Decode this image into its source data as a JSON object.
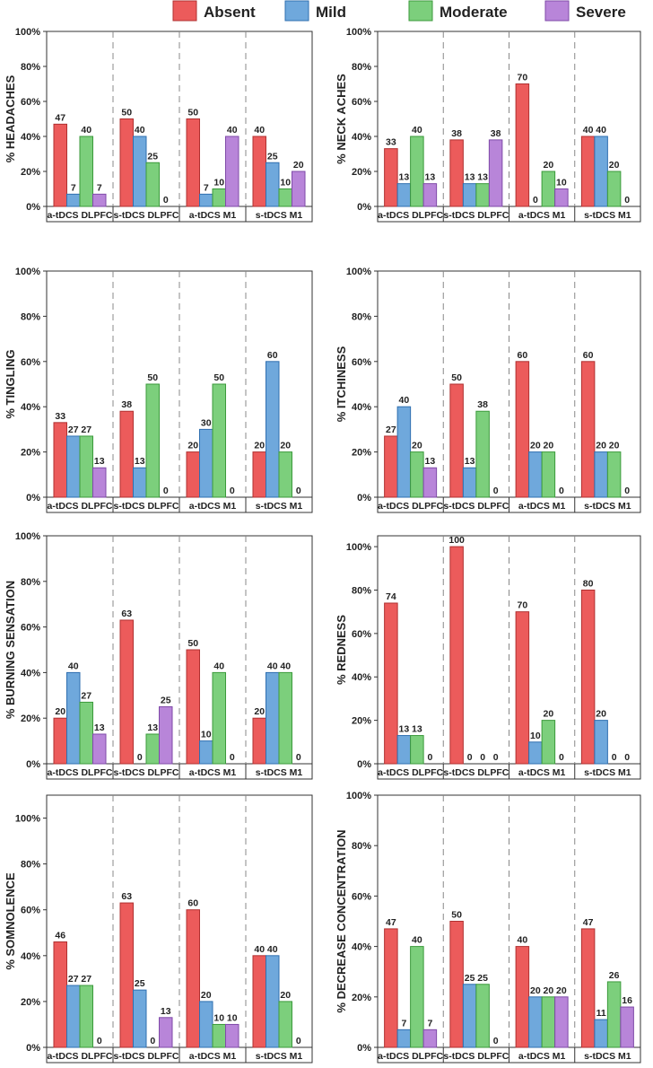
{
  "legend": {
    "entries": [
      "Absent",
      "Mild",
      "Moderate",
      "Severe"
    ]
  },
  "colors": {
    "Absent": "#ec5b5b",
    "Mild": "#6fa8dc",
    "Moderate": "#7ccf7c",
    "Severe": "#b885d9",
    "outline_Absent": "#b03030",
    "outline_Mild": "#2f6fb0",
    "outline_Moderate": "#3b9a3b",
    "outline_Severe": "#7f4aa8"
  },
  "chart_data": [
    {
      "type": "bar",
      "ylabel": "% HEADACHES",
      "ylim": [
        0,
        100
      ],
      "yticks": [
        "0%",
        "20%",
        "40%",
        "60%",
        "80%",
        "100%"
      ],
      "categories": [
        "a-tDCS DLPFC",
        "s-tDCS DLPFC",
        "a-tDCS M1",
        "s-tDCS M1"
      ],
      "series": [
        {
          "name": "Absent",
          "values": [
            47,
            50,
            50,
            40
          ]
        },
        {
          "name": "Mild",
          "values": [
            7,
            40,
            7,
            25
          ]
        },
        {
          "name": "Moderate",
          "values": [
            40,
            25,
            10,
            10
          ]
        },
        {
          "name": "Severe",
          "values": [
            7,
            0,
            40,
            20
          ]
        }
      ]
    },
    {
      "type": "bar",
      "ylabel": "% NECK ACHES",
      "ylim": [
        0,
        100
      ],
      "yticks": [
        "0%",
        "20%",
        "40%",
        "60%",
        "80%",
        "100%"
      ],
      "categories": [
        "a-tDCS DLPFC",
        "s-tDCS DLPFC",
        "a-tDCS M1",
        "s-tDCS M1"
      ],
      "series": [
        {
          "name": "Absent",
          "values": [
            33,
            38,
            70,
            40
          ]
        },
        {
          "name": "Mild",
          "values": [
            13,
            13,
            0,
            40
          ]
        },
        {
          "name": "Moderate",
          "values": [
            40,
            13,
            20,
            20
          ]
        },
        {
          "name": "Severe",
          "values": [
            13,
            38,
            10,
            0
          ]
        }
      ]
    },
    {
      "type": "bar",
      "ylabel": "% TINGLING",
      "ylim": [
        0,
        100
      ],
      "yticks": [
        "0%",
        "20%",
        "40%",
        "60%",
        "80%",
        "100%"
      ],
      "categories": [
        "a-tDCS DLPFC",
        "s-tDCS DLPFC",
        "a-tDCS M1",
        "s-tDCS M1"
      ],
      "series": [
        {
          "name": "Absent",
          "values": [
            33,
            38,
            20,
            20
          ]
        },
        {
          "name": "Mild",
          "values": [
            27,
            13,
            30,
            60
          ]
        },
        {
          "name": "Moderate",
          "values": [
            27,
            50,
            50,
            20
          ]
        },
        {
          "name": "Severe",
          "values": [
            13,
            0,
            0,
            0
          ]
        }
      ]
    },
    {
      "type": "bar",
      "ylabel": "% ITCHINESS",
      "ylim": [
        0,
        100
      ],
      "yticks": [
        "0%",
        "20%",
        "40%",
        "60%",
        "80%",
        "100%"
      ],
      "categories": [
        "a-tDCS DLPFC",
        "s-tDCS DLPFC",
        "a-tDCS M1",
        "s-tDCS M1"
      ],
      "series": [
        {
          "name": "Absent",
          "values": [
            27,
            50,
            60,
            60
          ]
        },
        {
          "name": "Mild",
          "values": [
            40,
            13,
            20,
            20
          ]
        },
        {
          "name": "Moderate",
          "values": [
            20,
            38,
            20,
            20
          ]
        },
        {
          "name": "Severe",
          "values": [
            13,
            0,
            0,
            0
          ]
        }
      ]
    },
    {
      "type": "bar",
      "ylabel": "% BURNING SENSATION",
      "ylim": [
        0,
        100
      ],
      "yticks": [
        "0%",
        "20%",
        "40%",
        "60%",
        "80%",
        "100%"
      ],
      "categories": [
        "a-tDCS DLPFC",
        "s-tDCS DLPFC",
        "a-tDCS M1",
        "s-tDCS M1"
      ],
      "series": [
        {
          "name": "Absent",
          "values": [
            20,
            63,
            50,
            20
          ]
        },
        {
          "name": "Mild",
          "values": [
            40,
            0,
            10,
            40
          ]
        },
        {
          "name": "Moderate",
          "values": [
            27,
            13,
            40,
            40
          ]
        },
        {
          "name": "Severe",
          "values": [
            13,
            25,
            0,
            0
          ]
        }
      ]
    },
    {
      "type": "bar",
      "ylabel": "% REDNESS",
      "ylim": [
        0,
        105
      ],
      "yticks": [
        "0%",
        "20%",
        "40%",
        "60%",
        "80%",
        "100%"
      ],
      "categories": [
        "a-tDCS DLPFC",
        "s-tDCS DLPFC",
        "a-tDCS M1",
        "s-tDCS M1"
      ],
      "series": [
        {
          "name": "Absent",
          "values": [
            74,
            100,
            70,
            80
          ]
        },
        {
          "name": "Mild",
          "values": [
            13,
            0,
            10,
            20
          ]
        },
        {
          "name": "Moderate",
          "values": [
            13,
            0,
            20,
            0
          ]
        },
        {
          "name": "Severe",
          "values": [
            0,
            0,
            0,
            0
          ]
        }
      ]
    },
    {
      "type": "bar",
      "ylabel": "% SOMNOLENCE",
      "ylim": [
        0,
        110
      ],
      "yticks": [
        "0%",
        "20%",
        "40%",
        "60%",
        "80%",
        "100%"
      ],
      "categories": [
        "a-tDCS DLPFC",
        "s-tDCS DLPFC",
        "a-tDCS M1",
        "s-tDCS M1"
      ],
      "series": [
        {
          "name": "Absent",
          "values": [
            46,
            63,
            60,
            40
          ]
        },
        {
          "name": "Mild",
          "values": [
            27,
            25,
            20,
            40
          ]
        },
        {
          "name": "Moderate",
          "values": [
            27,
            0,
            10,
            20
          ]
        },
        {
          "name": "Severe",
          "values": [
            0,
            13,
            10,
            0
          ]
        }
      ]
    },
    {
      "type": "bar",
      "ylabel": "% DECREASE CONCENTRATION",
      "ylim": [
        0,
        100
      ],
      "yticks": [
        "0%",
        "20%",
        "40%",
        "60%",
        "80%",
        "100%"
      ],
      "categories": [
        "a-tDCS DLPFC",
        "s-tDCS DLPFC",
        "a-tDCS M1",
        "s-tDCS M1"
      ],
      "series": [
        {
          "name": "Absent",
          "values": [
            47,
            50,
            40,
            47
          ]
        },
        {
          "name": "Mild",
          "values": [
            7,
            25,
            20,
            11
          ]
        },
        {
          "name": "Moderate",
          "values": [
            40,
            25,
            20,
            26
          ]
        },
        {
          "name": "Severe",
          "values": [
            7,
            0,
            20,
            16
          ]
        }
      ]
    }
  ]
}
